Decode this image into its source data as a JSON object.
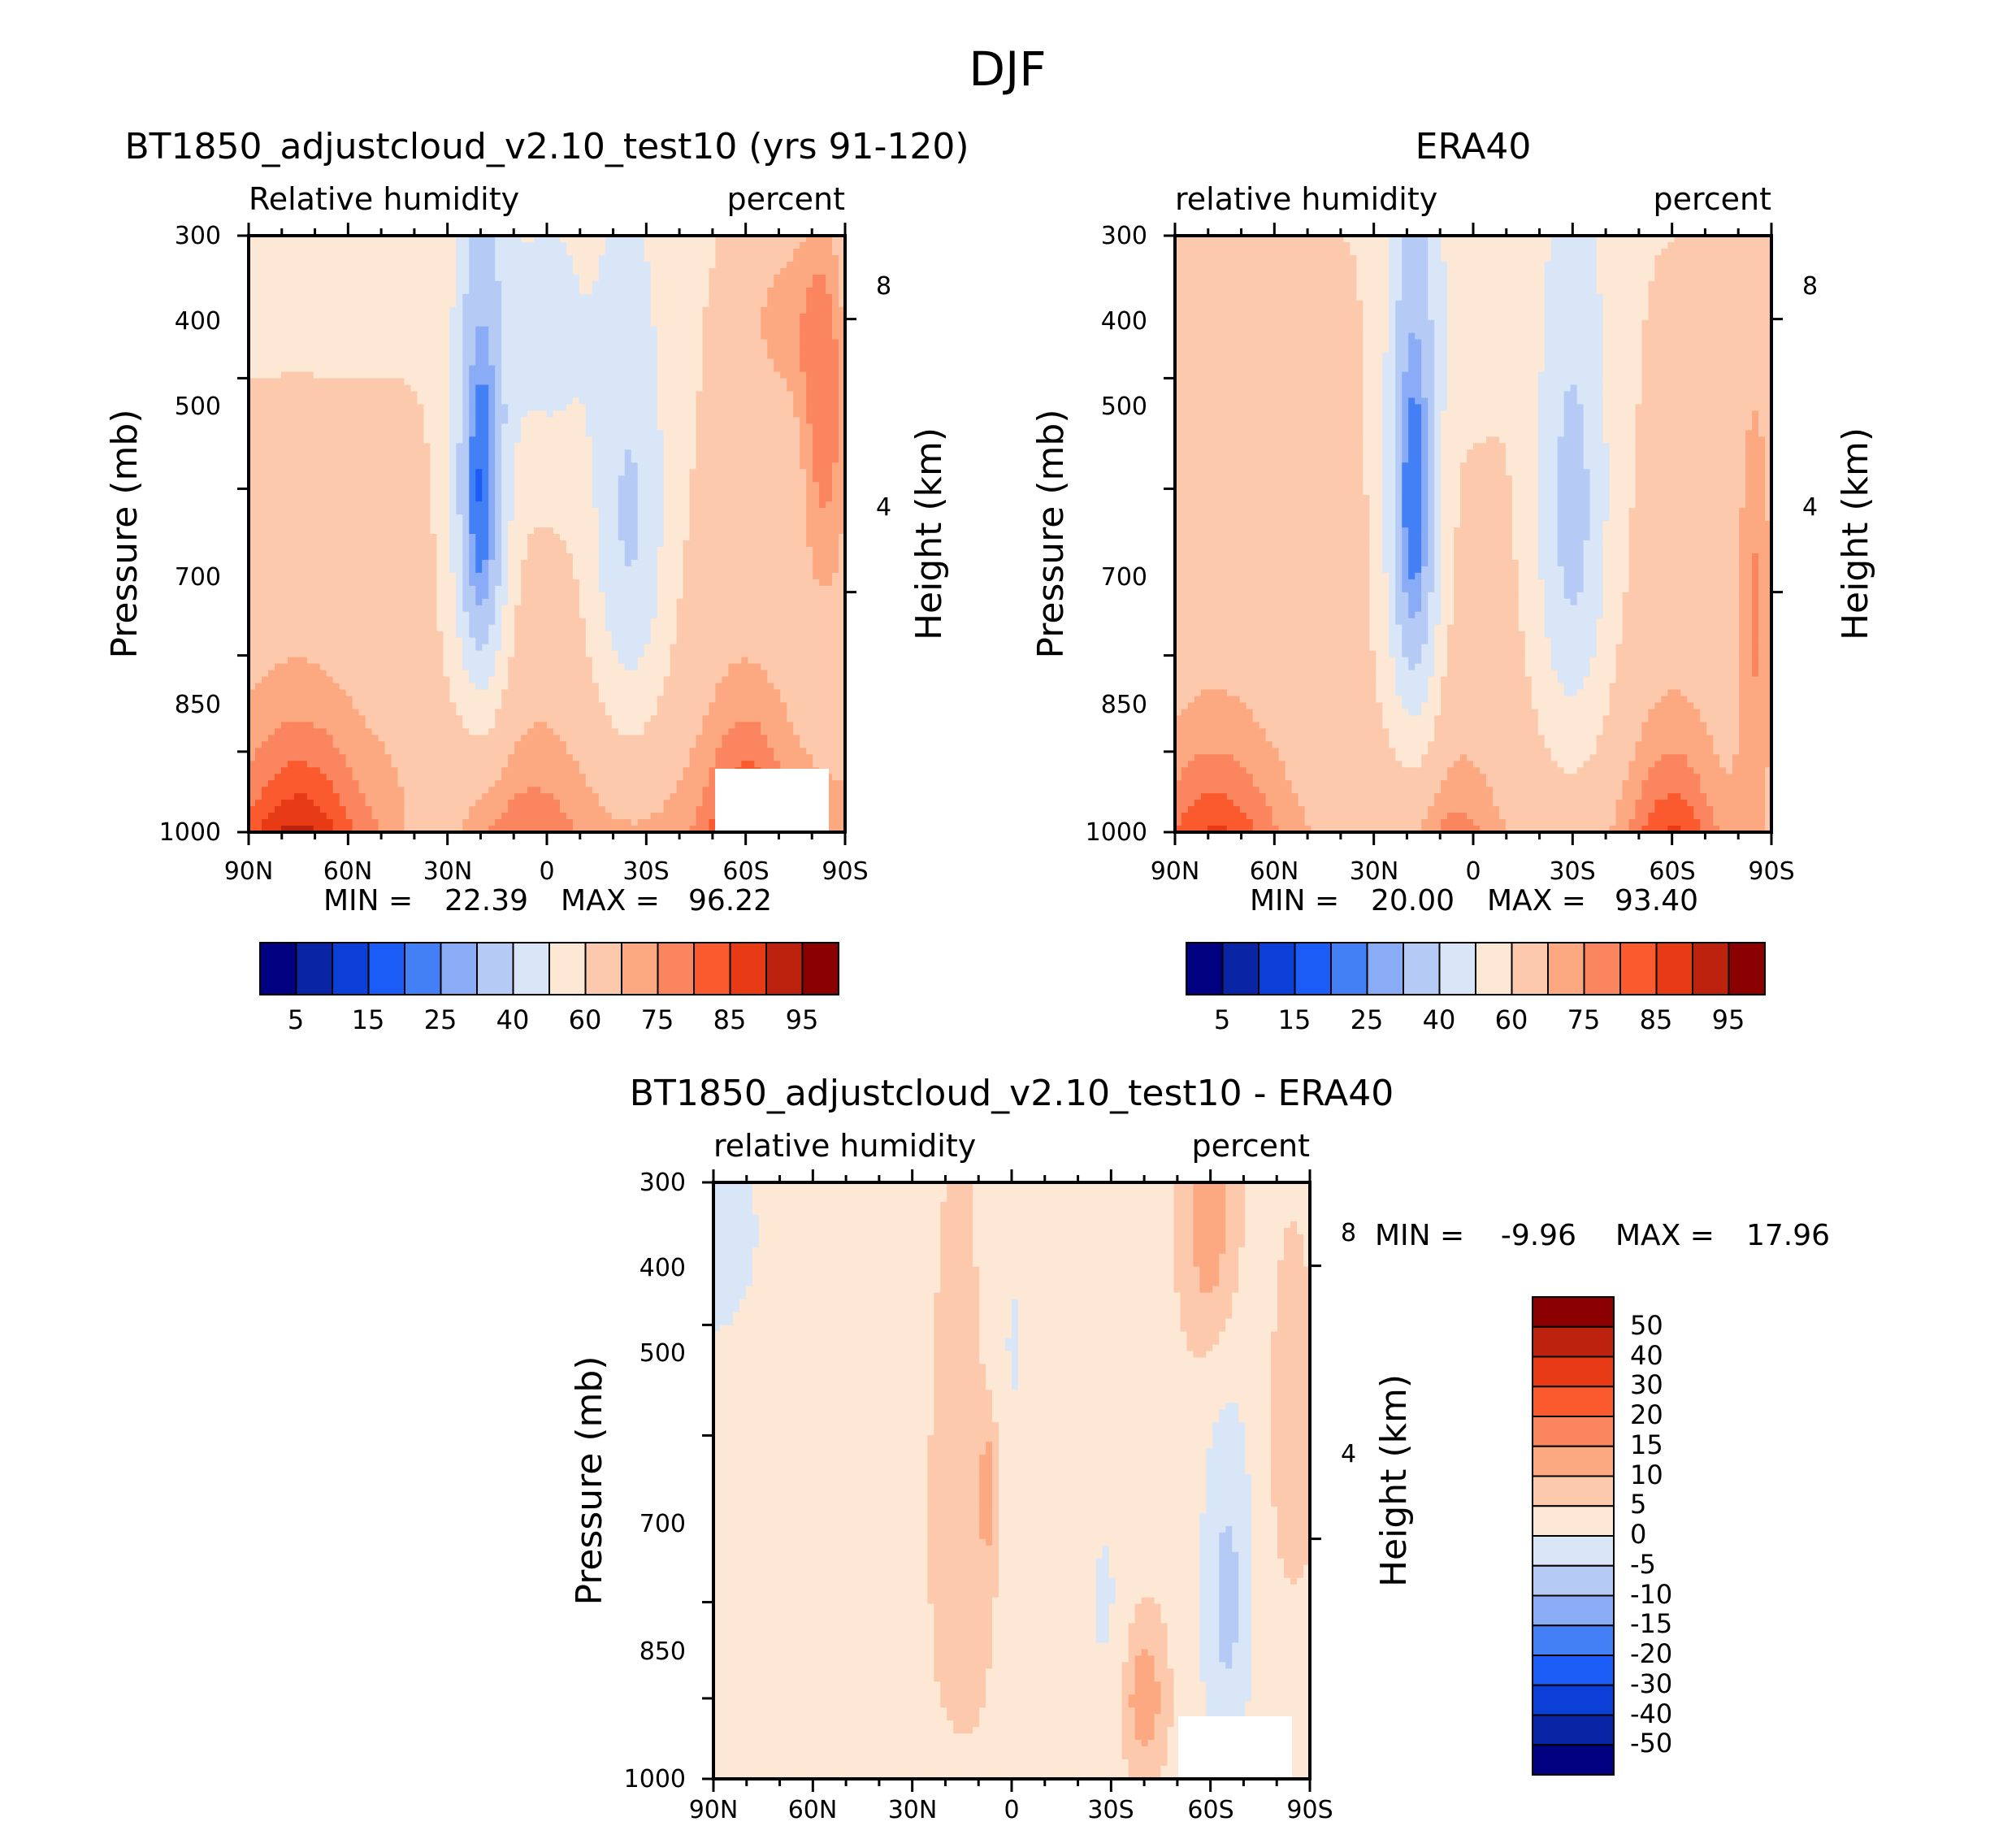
{
  "figure": {
    "title": "DJF"
  },
  "palettes": {
    "abs": [
      "#000080",
      "#0a24a6",
      "#0b3fd7",
      "#1a5cf5",
      "#4480f5",
      "#8aabf5",
      "#b5cbf5",
      "#d8e6f8",
      "#fde8d5",
      "#fcc9ad",
      "#fca982",
      "#fb855e",
      "#fb5a2e",
      "#e83a14",
      "#bd220e",
      "#8b0000"
    ],
    "diff": [
      "#000080",
      "#0a24a6",
      "#0b3fd7",
      "#1a5cf5",
      "#4480f5",
      "#8aabf5",
      "#b5cbf5",
      "#d8e6f8",
      "#fde8d5",
      "#fcc9ad",
      "#fca982",
      "#fb855e",
      "#fb5a2e",
      "#e83a14",
      "#bd220e",
      "#8b0000"
    ]
  },
  "chart_data": [
    {
      "id": "model",
      "type": "contour",
      "title": "BT1850_adjustcloud_v2.10_test10 (yrs 91-120)",
      "left_string": "Relative  humidity",
      "right_string": "percent",
      "xlabel": "",
      "ylabel": "Pressure (mb)",
      "right_ylabel": "Height (km)",
      "x_ticks": [
        "90N",
        "60N",
        "30N",
        "0",
        "30S",
        "60S",
        "90S"
      ],
      "y_ticks": [
        300,
        400,
        500,
        700,
        850,
        1000
      ],
      "right_ticks": [
        8,
        4
      ],
      "min_label": "MIN =",
      "min_value": "22.39",
      "max_label": "MAX =",
      "max_value": "96.22",
      "colorbar_labels": [
        "5",
        "15",
        "25",
        "40",
        "60",
        "75",
        "85",
        "95"
      ],
      "levels": [
        5,
        10,
        15,
        20,
        25,
        30,
        40,
        50,
        60,
        70,
        75,
        80,
        85,
        90,
        95
      ],
      "field": "model"
    },
    {
      "id": "obs",
      "type": "contour",
      "title": "ERA40",
      "left_string": "relative  humidity",
      "right_string": "percent",
      "xlabel": "",
      "ylabel": "Pressure (mb)",
      "right_ylabel": "Height (km)",
      "x_ticks": [
        "90N",
        "60N",
        "30N",
        "0",
        "30S",
        "60S",
        "90S"
      ],
      "y_ticks": [
        300,
        400,
        500,
        700,
        850,
        1000
      ],
      "right_ticks": [
        8,
        4
      ],
      "min_label": "MIN =",
      "min_value": "20.00",
      "max_label": "MAX =",
      "max_value": "93.40",
      "colorbar_labels": [
        "5",
        "15",
        "25",
        "40",
        "60",
        "75",
        "85",
        "95"
      ],
      "levels": [
        5,
        10,
        15,
        20,
        25,
        30,
        40,
        50,
        60,
        70,
        75,
        80,
        85,
        90,
        95
      ],
      "field": "obs"
    },
    {
      "id": "diff",
      "type": "contour",
      "title": "BT1850_adjustcloud_v2.10_test10 - ERA40",
      "left_string": "relative  humidity",
      "right_string": "percent",
      "xlabel": "",
      "ylabel": "Pressure (mb)",
      "right_ylabel": "Height (km)",
      "x_ticks": [
        "90N",
        "60N",
        "30N",
        "0",
        "30S",
        "60S",
        "90S"
      ],
      "y_ticks": [
        300,
        400,
        500,
        700,
        850,
        1000
      ],
      "right_ticks": [
        8,
        4
      ],
      "min_label": "MIN =",
      "min_value": "-9.96",
      "max_label": "MAX =",
      "max_value": "17.96",
      "colorbar_labels": [
        "50",
        "40",
        "30",
        "20",
        "15",
        "10",
        "5",
        "0",
        "-5",
        "-10",
        "-15",
        "-20",
        "-30",
        "-40",
        "-50"
      ],
      "levels": [
        -50,
        -40,
        -30,
        -20,
        -15,
        -10,
        -5,
        0,
        5,
        10,
        15,
        20,
        30,
        40,
        50
      ],
      "field": "diff"
    }
  ]
}
